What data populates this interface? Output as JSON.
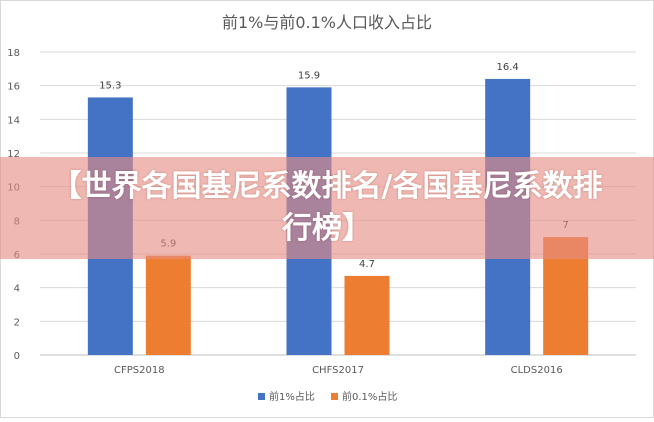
{
  "chart_data": {
    "type": "bar",
    "title": "前1%与前0.1%人口收入占比",
    "categories": [
      "CFPS2018",
      "CHFS2017",
      "CLDS2016"
    ],
    "series": [
      {
        "name": "前1%占比",
        "values": [
          15.3,
          15.9,
          16.4
        ],
        "color": "#4472c4"
      },
      {
        "name": "前0.1%占比",
        "values": [
          5.9,
          4.7,
          7
        ],
        "color": "#ed7d31"
      }
    ],
    "value_labels": [
      [
        "15.3",
        "15.9",
        "16.4"
      ],
      [
        "5.9",
        "4.7",
        "7"
      ]
    ],
    "ylim": [
      0,
      18
    ],
    "yticks": [
      "0",
      "2",
      "4",
      "6",
      "8",
      "10",
      "12",
      "14",
      "16",
      "18"
    ],
    "xlabel": "",
    "ylabel": "",
    "grid": true,
    "legend": "bottom"
  },
  "overlay": {
    "banner_text": "【世界各国基尼系数排名/各国基尼系数排行榜】",
    "banner_color": "#e78c82"
  }
}
